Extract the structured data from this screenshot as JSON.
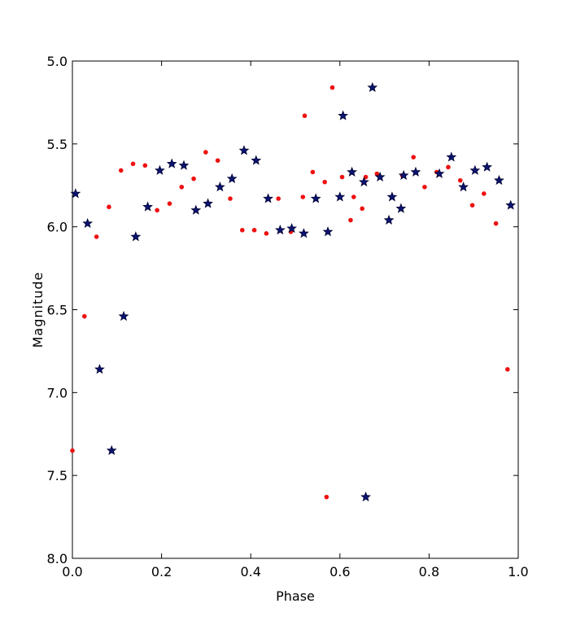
{
  "chart_data": {
    "type": "scatter",
    "xlabel": "Phase",
    "ylabel": "Magnitude",
    "xlim": [
      0.0,
      1.0
    ],
    "ylim": [
      5.0,
      8.0
    ],
    "y_inverted": true,
    "grid": false,
    "x_ticks": [
      0.0,
      0.2,
      0.4,
      0.6,
      0.8,
      1.0
    ],
    "x_tick_labels": [
      "0.0",
      "0.2",
      "0.4",
      "0.6",
      "0.8",
      "1.0"
    ],
    "y_ticks": [
      5.0,
      5.5,
      6.0,
      6.5,
      7.0,
      7.5,
      8.0
    ],
    "y_tick_labels": [
      "5.0",
      "5.5",
      "6.0",
      "6.5",
      "7.0",
      "7.5",
      "8.0"
    ],
    "series": [
      {
        "marker": "circle",
        "color": "#ee1111",
        "points": [
          [
            0.0,
            7.35
          ],
          [
            0.027,
            6.54
          ],
          [
            0.054,
            6.06
          ],
          [
            0.082,
            5.88
          ],
          [
            0.109,
            5.66
          ],
          [
            0.136,
            5.62
          ],
          [
            0.163,
            5.63
          ],
          [
            0.19,
            5.9
          ],
          [
            0.218,
            5.86
          ],
          [
            0.245,
            5.76
          ],
          [
            0.272,
            5.71
          ],
          [
            0.299,
            5.55
          ],
          [
            0.326,
            5.6
          ],
          [
            0.354,
            5.83
          ],
          [
            0.381,
            6.02
          ],
          [
            0.408,
            6.02
          ],
          [
            0.435,
            6.04
          ],
          [
            0.462,
            5.83
          ],
          [
            0.49,
            6.03
          ],
          [
            0.517,
            5.82
          ],
          [
            0.521,
            5.33
          ],
          [
            0.539,
            5.67
          ],
          [
            0.566,
            5.73
          ],
          [
            0.57,
            7.63
          ],
          [
            0.583,
            5.16
          ],
          [
            0.605,
            5.7
          ],
          [
            0.624,
            5.96
          ],
          [
            0.631,
            5.82
          ],
          [
            0.65,
            5.89
          ],
          [
            0.658,
            5.7
          ],
          [
            0.683,
            5.68
          ],
          [
            0.74,
            5.69
          ],
          [
            0.765,
            5.58
          ],
          [
            0.79,
            5.76
          ],
          [
            0.817,
            5.67
          ],
          [
            0.843,
            5.64
          ],
          [
            0.87,
            5.72
          ],
          [
            0.897,
            5.87
          ],
          [
            0.923,
            5.8
          ],
          [
            0.95,
            5.98
          ],
          [
            0.976,
            6.86
          ]
        ]
      },
      {
        "marker": "star",
        "color": "#0b1470",
        "points": [
          [
            0.007,
            5.8
          ],
          [
            0.034,
            5.98
          ],
          [
            0.061,
            6.86
          ],
          [
            0.088,
            7.35
          ],
          [
            0.115,
            6.54
          ],
          [
            0.142,
            6.06
          ],
          [
            0.169,
            5.88
          ],
          [
            0.196,
            5.66
          ],
          [
            0.223,
            5.62
          ],
          [
            0.25,
            5.63
          ],
          [
            0.277,
            5.9
          ],
          [
            0.304,
            5.86
          ],
          [
            0.331,
            5.76
          ],
          [
            0.358,
            5.71
          ],
          [
            0.385,
            5.54
          ],
          [
            0.412,
            5.6
          ],
          [
            0.439,
            5.83
          ],
          [
            0.466,
            6.02
          ],
          [
            0.492,
            6.01
          ],
          [
            0.519,
            6.04
          ],
          [
            0.546,
            5.83
          ],
          [
            0.573,
            6.03
          ],
          [
            0.6,
            5.82
          ],
          [
            0.607,
            5.33
          ],
          [
            0.627,
            5.67
          ],
          [
            0.654,
            5.73
          ],
          [
            0.658,
            7.63
          ],
          [
            0.673,
            5.16
          ],
          [
            0.69,
            5.7
          ],
          [
            0.71,
            5.96
          ],
          [
            0.717,
            5.82
          ],
          [
            0.737,
            5.89
          ],
          [
            0.743,
            5.69
          ],
          [
            0.77,
            5.67
          ],
          [
            0.823,
            5.68
          ],
          [
            0.85,
            5.58
          ],
          [
            0.877,
            5.76
          ],
          [
            0.903,
            5.66
          ],
          [
            0.93,
            5.64
          ],
          [
            0.957,
            5.72
          ],
          [
            0.983,
            5.87
          ]
        ]
      }
    ]
  }
}
